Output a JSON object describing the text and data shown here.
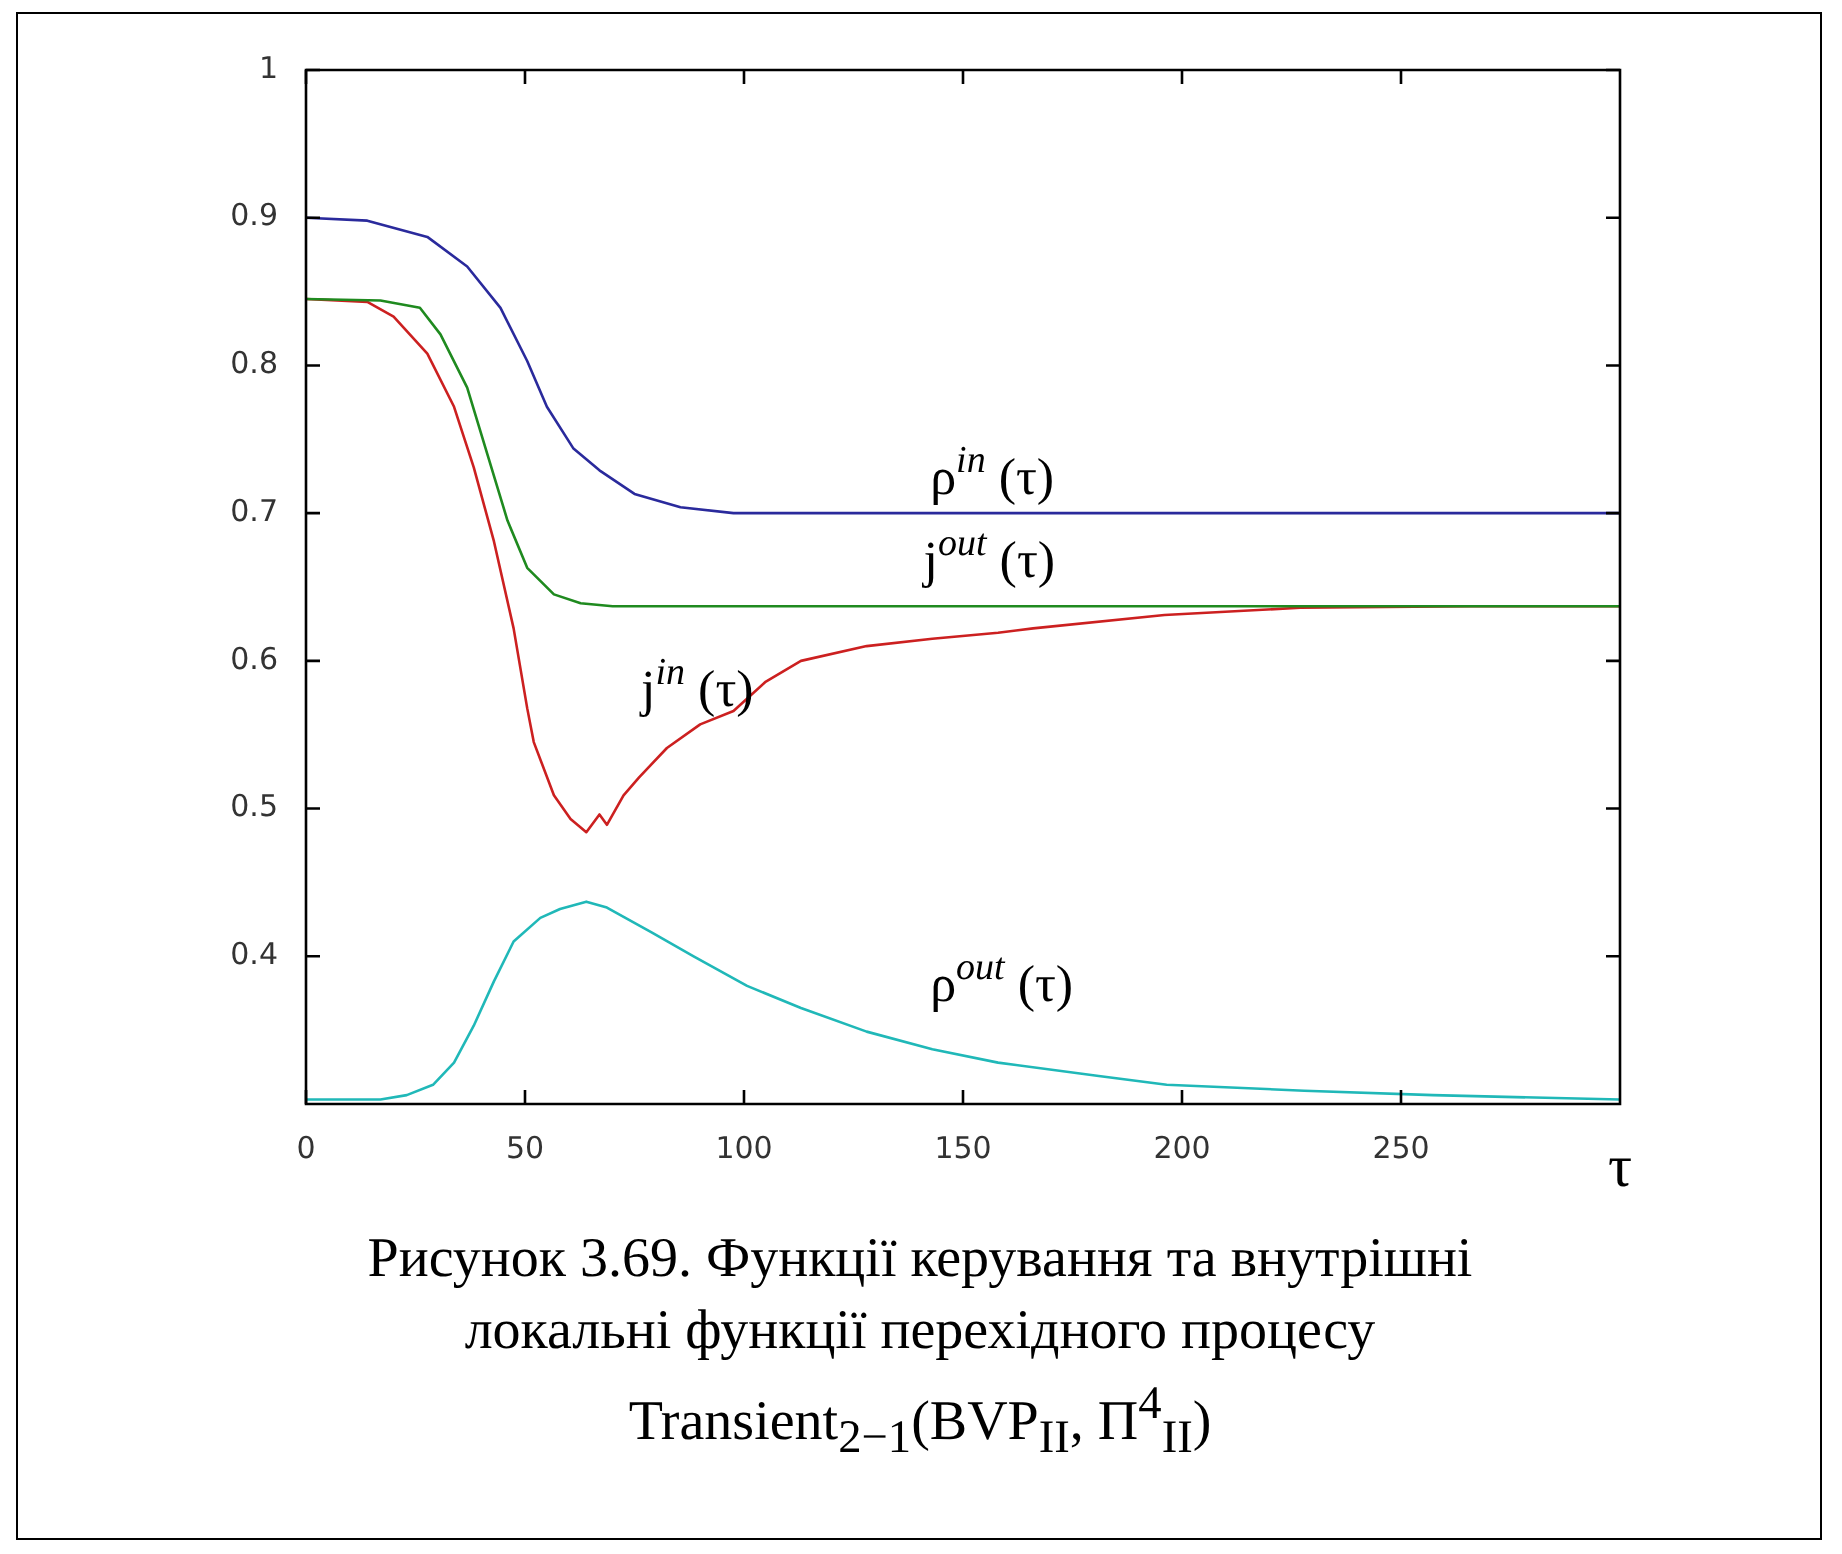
{
  "chart_data": {
    "type": "line",
    "title": "Рисунок 3.69. Функції керування та внутрішні локальні функції перехідного процесу Transient$_{2−1}$(BVP$_{II}$, Π$^{4}$$_{II}$)",
    "xlabel": "τ",
    "xlim": [
      0,
      300
    ],
    "xticks": [
      0,
      50,
      100,
      150,
      200,
      250
    ],
    "ylim": [
      0.3,
      1
    ],
    "yticks": [
      0.4,
      0.5,
      0.6,
      0.7,
      0.8,
      0.9,
      1
    ],
    "series": [
      {
        "name": "ρ$^{in}$ (τ)",
        "color": "#2a2a9c",
        "x": [
          0,
          14,
          27.7,
          36.8,
          44.4,
          50.5,
          55,
          61,
          67,
          75,
          85.5,
          97.6,
          300
        ],
        "values": [
          0.9,
          0.898,
          0.887,
          0.867,
          0.839,
          0.803,
          0.772,
          0.744,
          0.729,
          0.713,
          0.704,
          0.7,
          0.7
        ]
      },
      {
        "name": "j$^{out}$ (τ)",
        "color": "#1f8a1f",
        "x": [
          0,
          17,
          26,
          30.7,
          36.8,
          41.4,
          46,
          50.5,
          56.6,
          62.7,
          70,
          300
        ],
        "values": [
          0.845,
          0.844,
          0.839,
          0.821,
          0.785,
          0.74,
          0.695,
          0.663,
          0.645,
          0.639,
          0.637,
          0.637
        ]
      },
      {
        "name": "j$^{in}$ (τ)",
        "color": "#cc2020",
        "x": [
          0,
          14,
          20,
          27.7,
          33.8,
          38.3,
          42.9,
          47.4,
          50.5,
          52,
          56.6,
          60.4,
          64,
          67,
          68.7,
          72.5,
          76,
          82.4,
          90,
          97.6,
          105,
          113,
          128,
          143,
          158,
          166,
          196,
          227,
          266,
          300
        ],
        "values": [
          0.845,
          0.843,
          0.833,
          0.808,
          0.772,
          0.731,
          0.681,
          0.622,
          0.568,
          0.545,
          0.509,
          0.493,
          0.484,
          0.496,
          0.489,
          0.509,
          0.521,
          0.541,
          0.557,
          0.566,
          0.586,
          0.6,
          0.61,
          0.615,
          0.619,
          0.622,
          0.631,
          0.636,
          0.637,
          0.637
        ]
      },
      {
        "name": "ρ$^{out}$ (τ)",
        "color": "#20b8b8",
        "x": [
          0,
          17,
          23,
          29,
          33.8,
          38.3,
          42.9,
          47.4,
          53.5,
          58,
          64,
          68.7,
          79,
          88.5,
          100.7,
          113,
          128,
          143,
          158,
          181,
          196.5,
          227.9,
          257.3,
          300
        ],
        "values": [
          0.303,
          0.303,
          0.306,
          0.313,
          0.328,
          0.353,
          0.383,
          0.41,
          0.426,
          0.432,
          0.437,
          0.433,
          0.416,
          0.4,
          0.38,
          0.365,
          0.349,
          0.337,
          0.328,
          0.319,
          0.313,
          0.309,
          0.306,
          0.303
        ]
      }
    ]
  }
}
